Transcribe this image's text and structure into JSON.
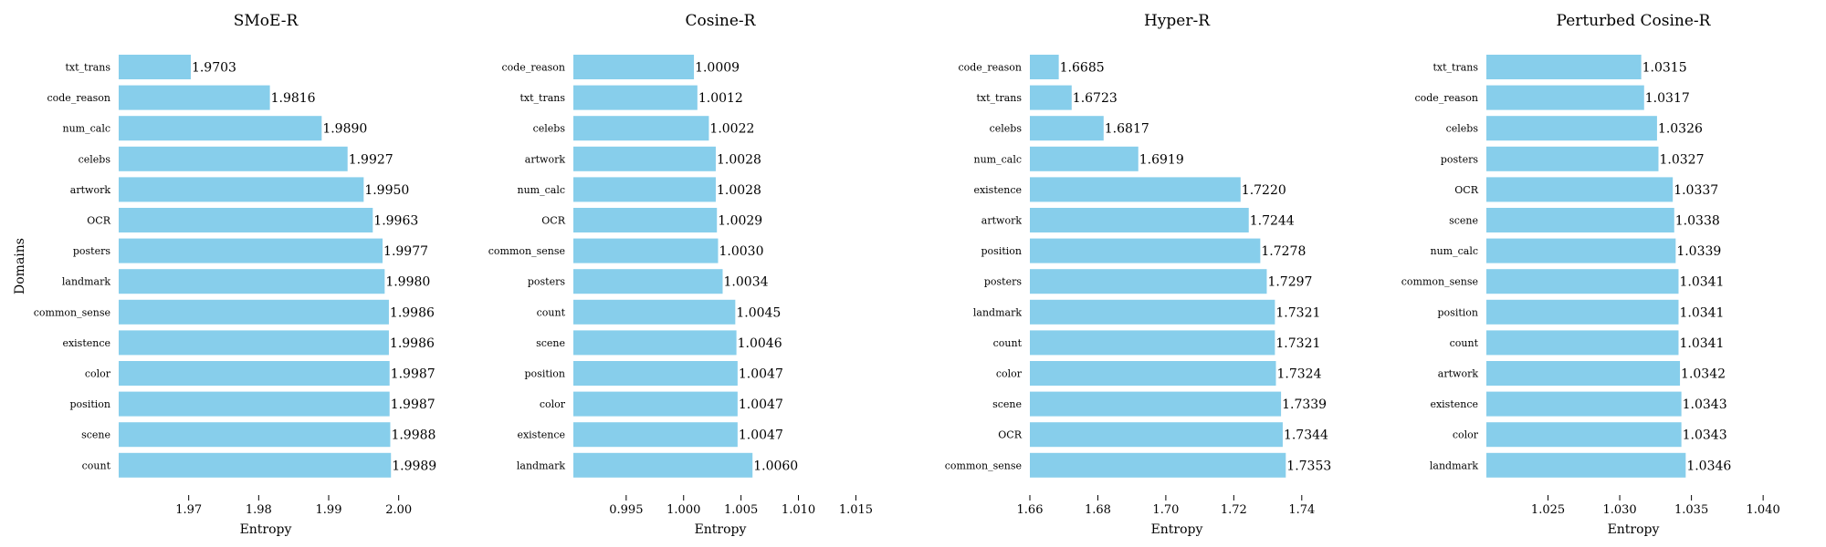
{
  "figure": {
    "shared_ylabel": "Domains",
    "xlabel": "Entropy",
    "bar_color": "#87CEEB"
  },
  "chart_data": [
    {
      "type": "bar",
      "orientation": "horizontal",
      "title": "SMoE-R",
      "xlabel": "Entropy",
      "ylabel": "Domains",
      "xlim": [
        1.96,
        2.002
      ],
      "xticks": [
        1.97,
        1.98,
        1.99,
        2.0
      ],
      "xtick_labels": [
        "1.97",
        "1.98",
        "1.99",
        "2.00"
      ],
      "categories": [
        "txt_trans",
        "code_reason",
        "num_calc",
        "celebs",
        "artwork",
        "OCR",
        "posters",
        "landmark",
        "common_sense",
        "existence",
        "color",
        "position",
        "scene",
        "count"
      ],
      "values": [
        1.9703,
        1.9816,
        1.989,
        1.9927,
        1.995,
        1.9963,
        1.9977,
        1.998,
        1.9986,
        1.9986,
        1.9987,
        1.9987,
        1.9988,
        1.9989
      ],
      "value_labels": [
        "1.9703",
        "1.9816",
        "1.9890",
        "1.9927",
        "1.9950",
        "1.9963",
        "1.9977",
        "1.9980",
        "1.9986",
        "1.9986",
        "1.9987",
        "1.9987",
        "1.9988",
        "1.9989"
      ],
      "grid": false
    },
    {
      "type": "bar",
      "orientation": "horizontal",
      "title": "Cosine-R",
      "xlabel": "Entropy",
      "xlim": [
        0.9904,
        1.016
      ],
      "xticks": [
        0.995,
        1.0,
        1.005,
        1.01,
        1.015
      ],
      "xtick_labels": [
        "0.995",
        "1.000",
        "1.005",
        "1.010",
        "1.015"
      ],
      "categories": [
        "code_reason",
        "txt_trans",
        "celebs",
        "artwork",
        "num_calc",
        "OCR",
        "common_sense",
        "posters",
        "count",
        "scene",
        "position",
        "color",
        "existence",
        "landmark"
      ],
      "values": [
        1.0009,
        1.0012,
        1.0022,
        1.0028,
        1.0028,
        1.0029,
        1.003,
        1.0034,
        1.0045,
        1.0046,
        1.0047,
        1.0047,
        1.0047,
        1.006
      ],
      "value_labels": [
        "1.0009",
        "1.0012",
        "1.0022",
        "1.0028",
        "1.0028",
        "1.0029",
        "1.0030",
        "1.0034",
        "1.0045",
        "1.0046",
        "1.0047",
        "1.0047",
        "1.0047",
        "1.0060"
      ],
      "grid": false
    },
    {
      "type": "bar",
      "orientation": "horizontal",
      "title": "Hyper-R",
      "xlabel": "Entropy",
      "xlim": [
        1.66,
        1.7465
      ],
      "xticks": [
        1.66,
        1.68,
        1.7,
        1.72,
        1.74
      ],
      "xtick_labels": [
        "1.66",
        "1.68",
        "1.70",
        "1.72",
        "1.74"
      ],
      "categories": [
        "code_reason",
        "txt_trans",
        "celebs",
        "num_calc",
        "existence",
        "artwork",
        "position",
        "posters",
        "landmark",
        "count",
        "color",
        "scene",
        "OCR",
        "common_sense"
      ],
      "values": [
        1.6685,
        1.6723,
        1.6817,
        1.6919,
        1.722,
        1.7244,
        1.7278,
        1.7297,
        1.7321,
        1.7321,
        1.7324,
        1.7339,
        1.7344,
        1.7353
      ],
      "value_labels": [
        "1.6685",
        "1.6723",
        "1.6817",
        "1.6919",
        "1.7220",
        "1.7244",
        "1.7278",
        "1.7297",
        "1.7321",
        "1.7321",
        "1.7324",
        "1.7339",
        "1.7344",
        "1.7353"
      ],
      "grid": false
    },
    {
      "type": "bar",
      "orientation": "horizontal",
      "title": "Perturbed Cosine-R",
      "xlabel": "Entropy",
      "xlim": [
        1.0207,
        1.0412
      ],
      "xticks": [
        1.025,
        1.03,
        1.035,
        1.04
      ],
      "xtick_labels": [
        "1.025",
        "1.030",
        "1.035",
        "1.040"
      ],
      "categories": [
        "txt_trans",
        "code_reason",
        "celebs",
        "posters",
        "OCR",
        "scene",
        "num_calc",
        "common_sense",
        "position",
        "count",
        "artwork",
        "existence",
        "color",
        "landmark"
      ],
      "values": [
        1.0315,
        1.0317,
        1.0326,
        1.0327,
        1.0337,
        1.0338,
        1.0339,
        1.0341,
        1.0341,
        1.0341,
        1.0342,
        1.0343,
        1.0343,
        1.0346
      ],
      "value_labels": [
        "1.0315",
        "1.0317",
        "1.0326",
        "1.0327",
        "1.0337",
        "1.0338",
        "1.0339",
        "1.0341",
        "1.0341",
        "1.0341",
        "1.0342",
        "1.0343",
        "1.0343",
        "1.0346"
      ],
      "grid": false
    }
  ]
}
